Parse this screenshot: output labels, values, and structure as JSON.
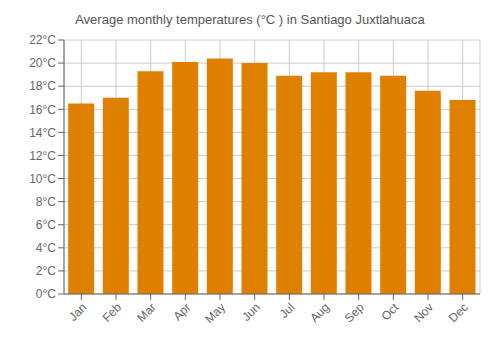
{
  "chart_data": {
    "type": "bar",
    "title": "Average monthly temperatures (°C ) in Santiago Juxtlahuaca",
    "categories": [
      "Jan",
      "Feb",
      "Mar",
      "Apr",
      "May",
      "Jun",
      "Jul",
      "Aug",
      "Sep",
      "Oct",
      "Nov",
      "Dec"
    ],
    "values": [
      16.5,
      17.0,
      19.3,
      20.1,
      20.4,
      20.0,
      18.9,
      19.2,
      19.2,
      18.9,
      17.6,
      16.8
    ],
    "color": "#E08000",
    "ylim": [
      0,
      22
    ],
    "yticks": [
      {
        "value": 0,
        "label": "0°C"
      },
      {
        "value": 2,
        "label": "2°C"
      },
      {
        "value": 4,
        "label": "4°C"
      },
      {
        "value": 6,
        "label": "6°C"
      },
      {
        "value": 8,
        "label": "8°C"
      },
      {
        "value": 10,
        "label": "10°C"
      },
      {
        "value": 12,
        "label": "12°C"
      },
      {
        "value": 14,
        "label": "14°C"
      },
      {
        "value": 16,
        "label": "16°C"
      },
      {
        "value": 18,
        "label": "18°C"
      },
      {
        "value": 20,
        "label": "20°C"
      },
      {
        "value": 22,
        "label": "22°C"
      }
    ],
    "grid": true
  }
}
